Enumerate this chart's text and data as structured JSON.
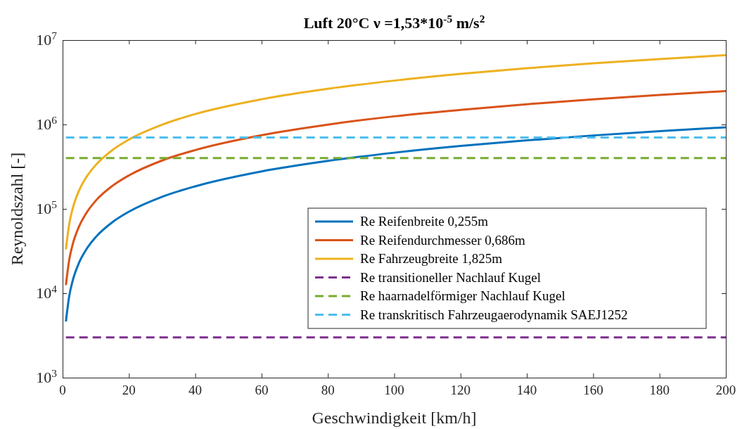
{
  "chart_data": {
    "type": "line",
    "title": "Luft 20°C ν =1,53*10$^{-5}$ m/s$^{2}$",
    "xlabel": "Geschwindigkeit [km/h]",
    "ylabel": "Reynoldszahl [-]",
    "x": [
      1,
      2,
      3,
      5,
      7,
      10,
      15,
      20,
      30,
      40,
      60,
      80,
      100,
      120,
      140,
      160,
      180,
      200
    ],
    "series": [
      {
        "name": "Re Reifenbreite 0,255m",
        "color": "#0072bd",
        "values": [
          4630,
          9260,
          13900,
          23200,
          32400,
          46300,
          69500,
          92600,
          139000,
          185000,
          278000,
          370000,
          463000,
          556000,
          648000,
          741000,
          833000,
          926000
        ]
      },
      {
        "name": "Re Reifendurchmesser 0,686m",
        "color": "#d95319",
        "values": [
          12500,
          24900,
          37400,
          62300,
          87200,
          125000,
          187000,
          249000,
          374000,
          498000,
          747000,
          996000,
          1250000,
          1490000,
          1740000,
          1990000,
          2240000,
          2490000
        ]
      },
      {
        "name": "Re Fahrzeugbreite 1,825m",
        "color": "#edb120",
        "values": [
          33100,
          66300,
          99400,
          166000,
          232000,
          331000,
          497000,
          663000,
          994000,
          1330000,
          1990000,
          2650000,
          3310000,
          3980000,
          4640000,
          5300000,
          5960000,
          6630000
        ]
      },
      {
        "name": "Re transitioneller Nachlauf Kugel",
        "color": "#7e2f8e",
        "values": [
          3000,
          3000,
          3000,
          3000,
          3000,
          3000,
          3000,
          3000,
          3000,
          3000,
          3000,
          3000,
          3000,
          3000,
          3000,
          3000,
          3000,
          3000
        ],
        "line_style": "dashed"
      },
      {
        "name": "Re haarnadelförmiger Nachlauf Kugel",
        "color": "#77ac30",
        "values": [
          400000,
          400000,
          400000,
          400000,
          400000,
          400000,
          400000,
          400000,
          400000,
          400000,
          400000,
          400000,
          400000,
          400000,
          400000,
          400000,
          400000,
          400000
        ],
        "line_style": "dashed"
      },
      {
        "name": "Re transkritisch Fahrzeugaerodynamik SAEJ1252",
        "color": "#4dbeee",
        "values": [
          700000,
          700000,
          700000,
          700000,
          700000,
          700000,
          700000,
          700000,
          700000,
          700000,
          700000,
          700000,
          700000,
          700000,
          700000,
          700000,
          700000,
          700000
        ],
        "line_style": "dashed"
      }
    ],
    "xlim": [
      0,
      200
    ],
    "xticks": [
      0,
      20,
      40,
      60,
      80,
      100,
      120,
      140,
      160,
      180,
      200
    ],
    "ylim": [
      1000,
      10000000
    ],
    "yticks": [
      {
        "value": 1000,
        "label": "10$^{3}$"
      },
      {
        "value": 10000,
        "label": "10$^{4}$"
      },
      {
        "value": 100000,
        "label": "10$^{5}$"
      },
      {
        "value": 1000000,
        "label": "10$^{6}$"
      },
      {
        "value": 10000000,
        "label": "10$^{7}$"
      }
    ],
    "log": true,
    "grid": false,
    "legend": "bottom right",
    "line_style": "solid",
    "marker": "none"
  }
}
